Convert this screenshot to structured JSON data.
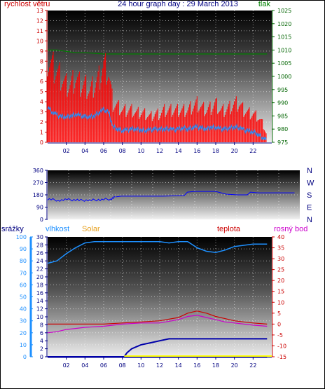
{
  "header": {
    "title": "24 hour graph day : 29 March 2013",
    "wind_label": "rychlost větru",
    "pressure_label": "tlak"
  },
  "panel3_labels": {
    "rain": "srážky",
    "humidity": "vlhkost",
    "solar": "Solar",
    "temp": "teplota",
    "dew": "rosný bod"
  },
  "colors": {
    "wind_gust": "#ff0000",
    "wind_avg": "#1e90ff",
    "pressure": "#008000",
    "direction": "#0000ff",
    "humidity": "#1e90ff",
    "temperature": "#cc0000",
    "dewpoint": "#cc00cc",
    "rain": "#0000aa",
    "solar": "#ffff00",
    "wind_axis": "#cc0000",
    "pressure_axis": "#006400",
    "left_axis3": "#1e90ff",
    "right_axis3": "#cc0000"
  },
  "chart_data": [
    {
      "type": "line",
      "x_ticks": [
        "02",
        "04",
        "06",
        "08",
        "10",
        "12",
        "14",
        "16",
        "18",
        "20",
        "22"
      ],
      "xlim": [
        0,
        24
      ],
      "y_left": {
        "label": "rychlost větru",
        "ylim": [
          0,
          13
        ],
        "ticks": [
          "0",
          "1",
          "2",
          "3",
          "4",
          "5",
          "6",
          "7",
          "8",
          "9",
          "10",
          "11",
          "12",
          "13"
        ]
      },
      "y_right": {
        "label": "tlak",
        "ylim": [
          975,
          1025
        ],
        "ticks": [
          "975",
          "980",
          "985",
          "990",
          "995",
          "1000",
          "1005",
          "1010",
          "1015",
          "1020",
          "1025"
        ]
      },
      "series": [
        {
          "name": "tlak",
          "axis": "right",
          "x": [
            0,
            1,
            2,
            3,
            4,
            6,
            8,
            10,
            12,
            14,
            16,
            18,
            20,
            22,
            23.5
          ],
          "values": [
            1010,
            1010,
            1009.5,
            1009,
            1009,
            1008.5,
            1008.5,
            1008.5,
            1008.5,
            1008.5,
            1008.5,
            1008.5,
            1008.5,
            1008.5,
            1008.5
          ]
        },
        {
          "axis": "left",
          "style": "gust",
          "x": [
            0,
            0.5,
            1,
            1.5,
            2,
            2.5,
            3,
            3.5,
            4,
            4.5,
            5,
            5.5,
            6,
            6.5,
            7,
            7.5,
            8,
            8.5,
            9,
            9.5,
            10,
            10.5,
            11,
            11.5,
            12,
            12.5,
            13,
            13.5,
            14,
            14.5,
            15,
            15.5,
            16,
            16.5,
            17,
            17.5,
            18,
            18.5,
            19,
            19.5,
            20,
            20.5,
            21,
            21.5,
            22,
            22.5,
            23,
            23.5
          ],
          "values": [
            6.5,
            6,
            5.5,
            5,
            4.5,
            4.5,
            5,
            4.5,
            4.5,
            4,
            4.5,
            5,
            6,
            5.5,
            3,
            2.8,
            2.5,
            2.5,
            2.5,
            2.3,
            2.3,
            2.2,
            2,
            2.2,
            2.2,
            2.5,
            2.5,
            2.5,
            2.5,
            2.5,
            2.5,
            2.8,
            3,
            2.7,
            2.5,
            2.7,
            3,
            2.5,
            2.5,
            2.7,
            3,
            3,
            2.5,
            2.3,
            2.2,
            2,
            1.5,
            0.5
          ]
        },
        {
          "axis": "left",
          "style": "average",
          "x": [
            0,
            0.5,
            1,
            1.5,
            2,
            2.5,
            3,
            3.5,
            4,
            4.5,
            5,
            5.5,
            6,
            6.5,
            7,
            7.5,
            8,
            8.5,
            9,
            9.5,
            10,
            10.5,
            11,
            11.5,
            12,
            12.5,
            13,
            13.5,
            14,
            14.5,
            15,
            15.5,
            16,
            16.5,
            17,
            17.5,
            18,
            18.5,
            19,
            19.5,
            20,
            20.5,
            21,
            21.5,
            22,
            22.5,
            23,
            23.5
          ],
          "values": [
            3.5,
            3,
            2.7,
            2.5,
            2.5,
            2.6,
            2.8,
            2.6,
            2.5,
            2.5,
            2.6,
            3,
            3.2,
            3,
            1.5,
            1.3,
            1.2,
            1.2,
            1.3,
            1.3,
            1.2,
            1.2,
            1.2,
            1.3,
            1.3,
            1.3,
            1.4,
            1.2,
            1.3,
            1.4,
            1.3,
            1.5,
            1.5,
            1.4,
            1.3,
            1.5,
            1.5,
            1.3,
            1.3,
            1.4,
            1.5,
            1.5,
            1.2,
            1.1,
            1,
            0.8,
            0.5,
            0.2
          ]
        }
      ]
    },
    {
      "type": "line",
      "x_ticks": [],
      "xlim": [
        0,
        24
      ],
      "y_left": {
        "ylim": [
          0,
          360
        ],
        "ticks": [
          "0",
          "90",
          "180",
          "270",
          "360"
        ]
      },
      "y_right": {
        "ticks": [
          "N",
          "E",
          "S",
          "W",
          "N"
        ]
      },
      "series": [
        {
          "axis": "left",
          "x": [
            0,
            1,
            2,
            3,
            4,
            5,
            6,
            6.5,
            7,
            9,
            11,
            13,
            13.3,
            14,
            15,
            16,
            17,
            18,
            19,
            19.3,
            20,
            21,
            22,
            23.5
          ],
          "values": [
            150,
            140,
            145,
            140,
            140,
            145,
            150,
            165,
            170,
            170,
            170,
            175,
            200,
            205,
            205,
            205,
            185,
            180,
            180,
            200,
            195,
            195,
            195,
            195
          ]
        }
      ]
    },
    {
      "type": "line",
      "x_ticks": [
        "02",
        "04",
        "06",
        "08",
        "10",
        "12",
        "14",
        "16",
        "18",
        "20",
        "22"
      ],
      "xlim": [
        0,
        24
      ],
      "y_left_rain": {
        "label": "srážky",
        "ylim": [
          0,
          100
        ],
        "ticks": [
          "0",
          "10",
          "20",
          "30",
          "40",
          "50",
          "60",
          "70",
          "80",
          "90",
          "100"
        ]
      },
      "y_left_humidity": {
        "label": "vlhkost",
        "ylim": [
          0,
          30
        ],
        "ticks": [
          "0",
          "2",
          "4",
          "6",
          "8",
          "10",
          "12",
          "14",
          "16",
          "18",
          "20",
          "22",
          "24",
          "26",
          "28",
          "30"
        ]
      },
      "y_right": {
        "label": "teplota",
        "ylim": [
          -15,
          40
        ],
        "ticks": [
          "-15",
          "-10",
          "-5",
          "0",
          "5",
          "10",
          "15",
          "20",
          "25",
          "30",
          "35",
          "40"
        ]
      },
      "series": [
        {
          "name": "vlhkost",
          "axis": "rain",
          "x": [
            0,
            1,
            2,
            3,
            4,
            5,
            6,
            8,
            10,
            12,
            13,
            14,
            15,
            16,
            17,
            18,
            19,
            20,
            21,
            22,
            23.5
          ],
          "values": [
            78,
            80,
            86,
            91,
            95,
            96,
            96,
            96,
            96,
            96,
            95,
            96,
            96,
            91,
            88,
            87,
            89,
            92,
            93,
            94,
            94
          ]
        },
        {
          "name": "teplota",
          "axis": "right",
          "x": [
            0,
            2,
            4,
            6,
            8,
            10,
            12,
            14,
            15,
            16,
            17,
            18,
            19,
            20,
            21,
            22,
            23.5
          ],
          "values": [
            0,
            0,
            0,
            0,
            0.5,
            1,
            1.5,
            3,
            5,
            6,
            5,
            3.5,
            2.5,
            1.5,
            1,
            0.5,
            0
          ]
        },
        {
          "name": "rosný bod",
          "axis": "right",
          "x": [
            0,
            1,
            2,
            3,
            4,
            6,
            8,
            10,
            12,
            14,
            15,
            16,
            17,
            18,
            19,
            20,
            22,
            23.5
          ],
          "values": [
            -4,
            -3.5,
            -2.5,
            -2,
            -1.5,
            -1,
            0,
            0.5,
            0.5,
            2,
            3.5,
            4,
            3,
            2,
            1,
            0.5,
            -0.5,
            -1
          ]
        },
        {
          "name": "srážky",
          "axis": "humidity",
          "x": [
            0,
            8.2,
            8.5,
            9,
            10,
            11,
            12,
            13,
            14,
            16,
            18,
            20,
            22,
            23.5
          ],
          "values": [
            0,
            0,
            1,
            2,
            3,
            3.5,
            4,
            4.5,
            4.5,
            4.5,
            4.5,
            4.5,
            4.5,
            4.5
          ]
        },
        {
          "name": "Solar",
          "axis": "humidity",
          "x": [
            0,
            8,
            8.2,
            23.5
          ],
          "values": [
            0,
            0,
            0,
            0
          ]
        }
      ]
    }
  ]
}
